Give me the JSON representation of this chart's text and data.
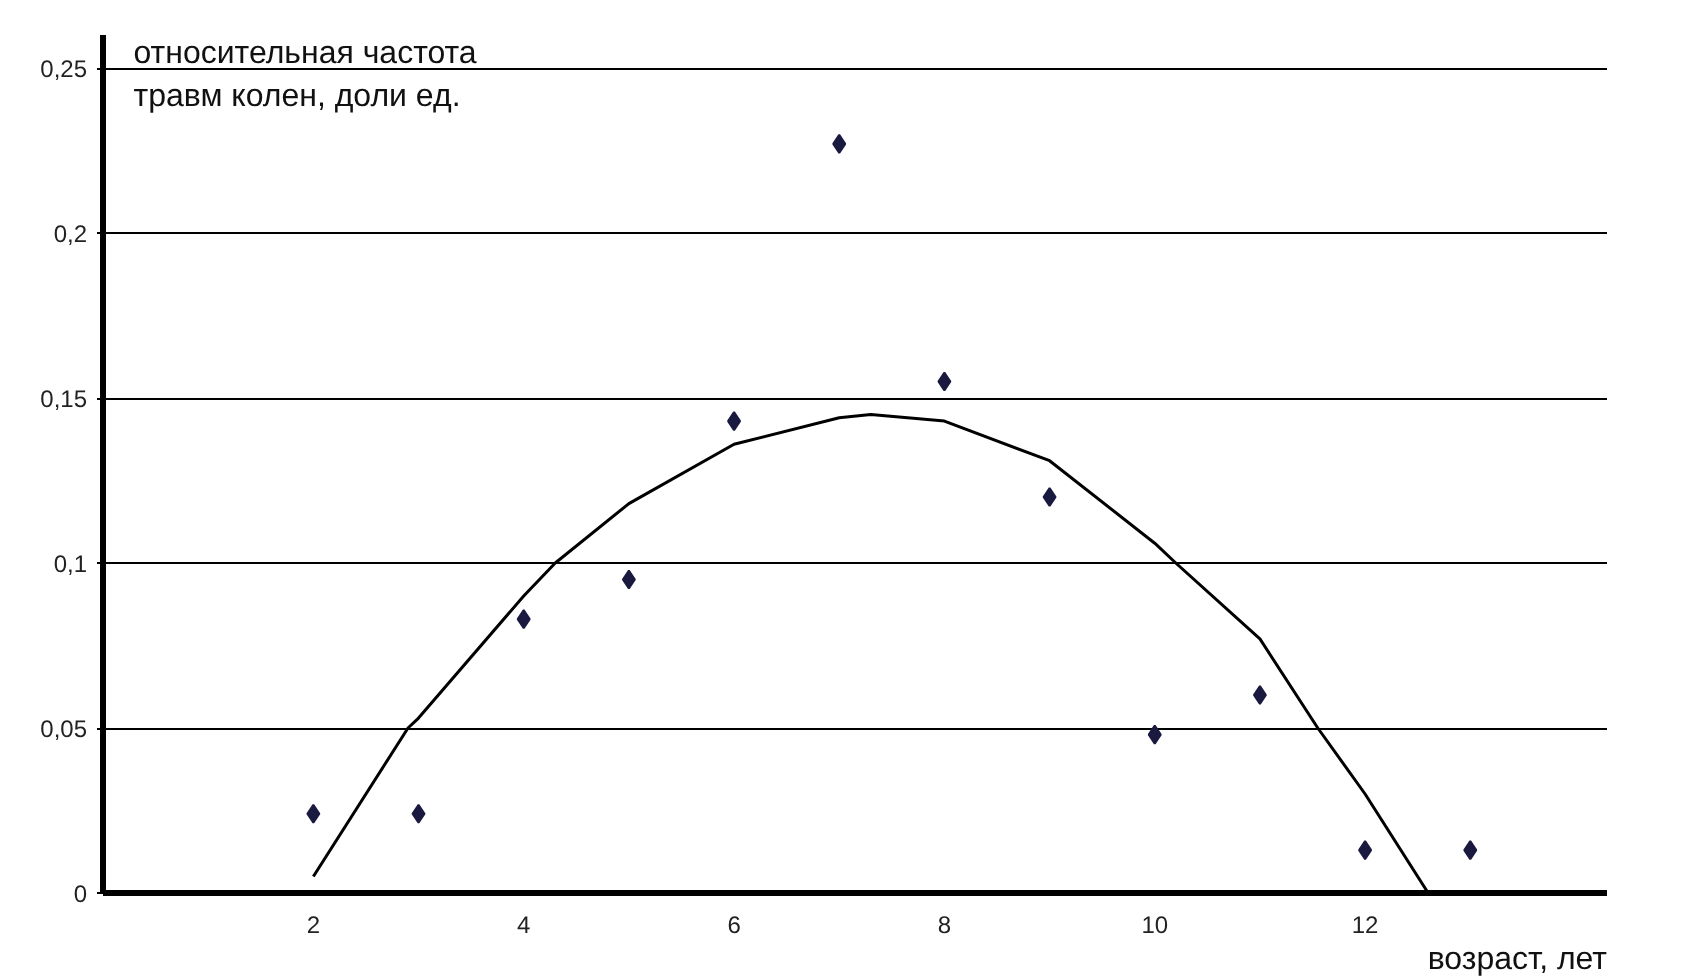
{
  "chart_data": {
    "type": "scatter",
    "xlabel": "возраст, лет",
    "ylabel": "относительная частота\nтравм колен,  доли ед.",
    "x": [
      2,
      3,
      4,
      5,
      6,
      7,
      8,
      9,
      10,
      11,
      12,
      13
    ],
    "series": [
      {
        "color": "#1a1a40",
        "marker": "diamond",
        "values": [
          0.024,
          0.024,
          0.083,
          0.095,
          0.143,
          0.227,
          0.155,
          0.12,
          0.048,
          0.06,
          0.013,
          0.013
        ]
      },
      {
        "type": "line",
        "color": "#000000",
        "line_style": "solid",
        "x": [
          2,
          2.9,
          3,
          4,
          4.3,
          5,
          6,
          7,
          7.3,
          8,
          9,
          10,
          10.2,
          11,
          11.55,
          12,
          12.6
        ],
        "values": [
          0.005,
          0.05,
          0.053,
          0.09,
          0.1,
          0.118,
          0.136,
          0.144,
          0.145,
          0.143,
          0.131,
          0.106,
          0.1,
          0.077,
          0.05,
          0.03,
          0
        ]
      }
    ],
    "xlim": [
      0,
      14.3
    ],
    "xticks": [
      2,
      4,
      6,
      8,
      10,
      12
    ],
    "ylim": [
      0,
      0.26
    ],
    "yticks": [
      {
        "value": 0,
        "label": "0"
      },
      {
        "value": 0.05,
        "label": "0,05"
      },
      {
        "value": 0.1,
        "label": "0,1"
      },
      {
        "value": 0.15,
        "label": "0,15"
      },
      {
        "value": 0.2,
        "label": "0,2"
      },
      {
        "value": 0.25,
        "label": "0,25"
      }
    ],
    "grid": "y"
  }
}
